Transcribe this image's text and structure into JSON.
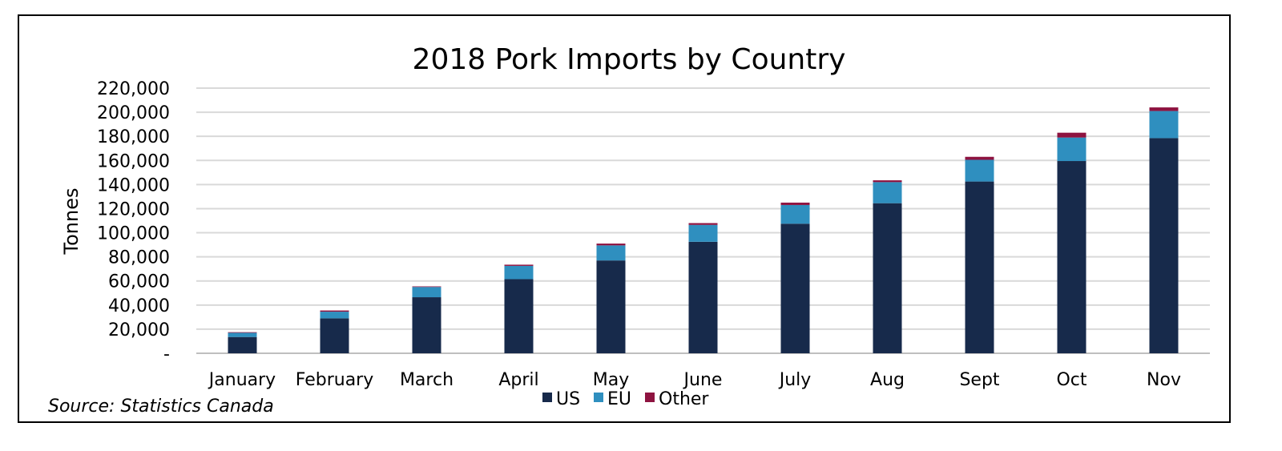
{
  "chart_data": {
    "type": "bar",
    "stacked": true,
    "title": "2018 Pork Imports by Country",
    "ylabel": "Tonnes",
    "xlabel": "",
    "ylim": [
      0,
      220000
    ],
    "yticks": [
      "-",
      "20,000",
      "40,000",
      "60,000",
      "80,000",
      "100,000",
      "120,000",
      "140,000",
      "160,000",
      "180,000",
      "200,000",
      "220,000"
    ],
    "categories": [
      "January",
      "February",
      "March",
      "April",
      "May",
      "June",
      "July",
      "Aug",
      "Sept",
      "Oct",
      "Nov"
    ],
    "series": [
      {
        "name": "US",
        "color": "#172a4b",
        "values": [
          13500,
          29000,
          46500,
          61500,
          77000,
          92500,
          107500,
          124500,
          142500,
          159500,
          178500
        ]
      },
      {
        "name": "EU",
        "color": "#2f8fbf",
        "values": [
          3500,
          5500,
          8500,
          11000,
          12500,
          14000,
          15500,
          17500,
          18000,
          19500,
          22500
        ]
      },
      {
        "name": "Other",
        "color": "#8e1340",
        "values": [
          500,
          1000,
          500,
          1000,
          1500,
          1500,
          2000,
          1500,
          2500,
          4000,
          3000
        ]
      }
    ],
    "grid": true,
    "legend": "bottom"
  },
  "source": "Source: Statistics Canada"
}
